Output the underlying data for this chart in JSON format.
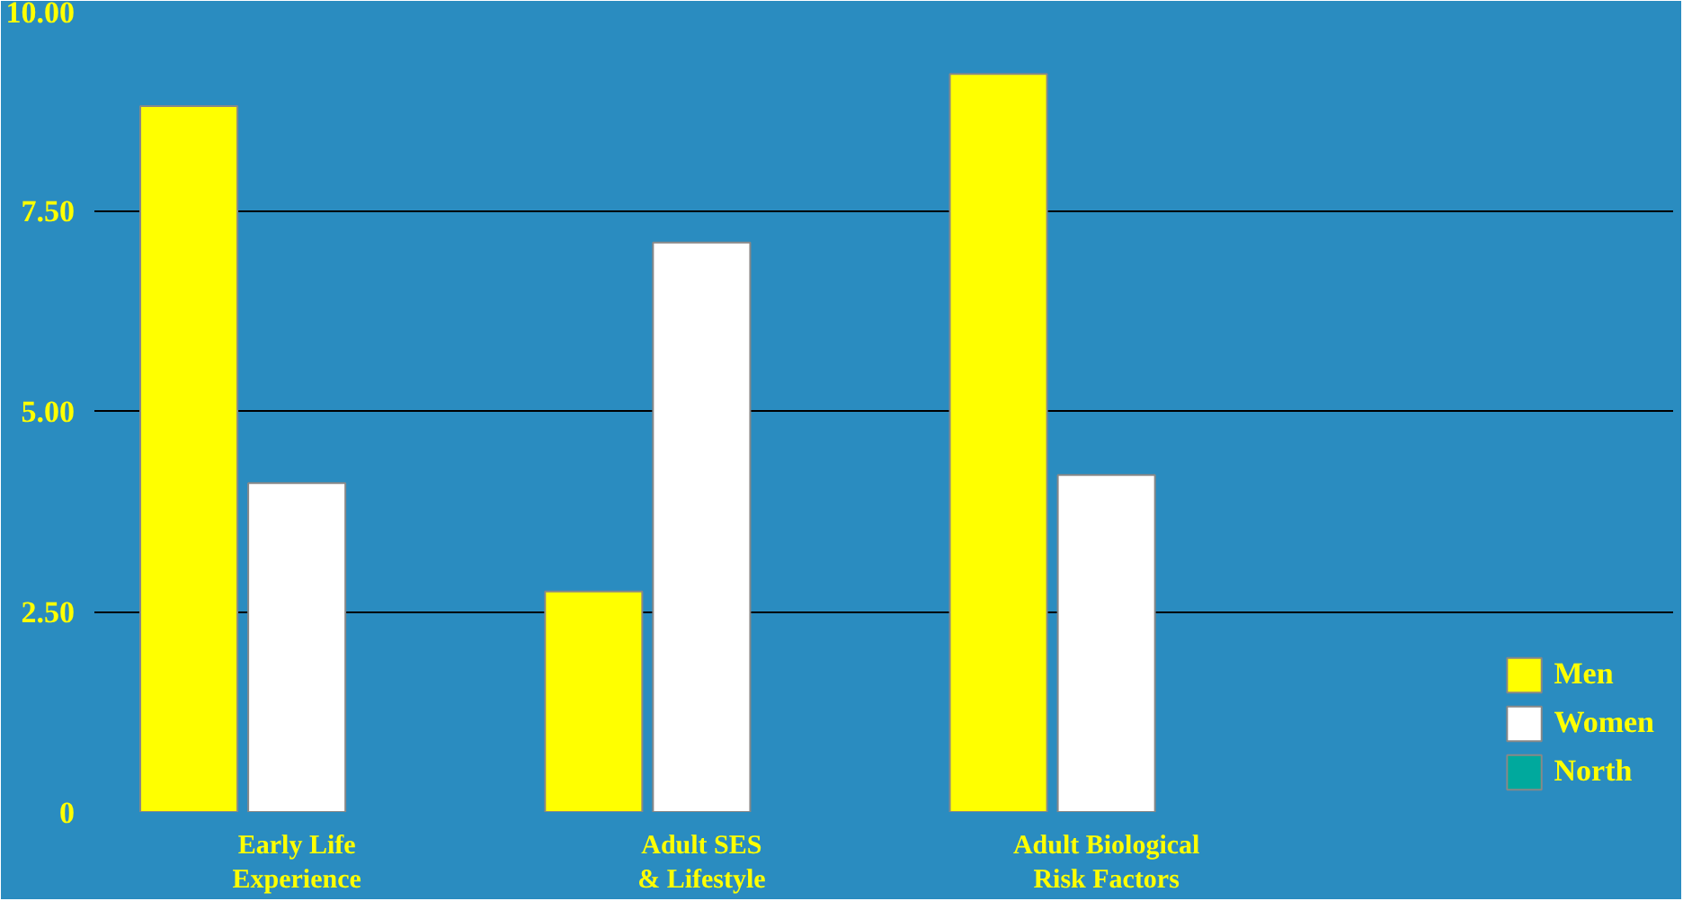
{
  "chart_data": {
    "type": "bar",
    "categories": [
      "Early Life Experience",
      "Adult SES & Lifestyle",
      "Adult Biological Risk Factors"
    ],
    "series": [
      {
        "name": "Men",
        "color": "#ffff00",
        "values": [
          8.8,
          2.75,
          9.2
        ]
      },
      {
        "name": "Women",
        "color": "#ffffff",
        "values": [
          4.1,
          7.1,
          4.2
        ]
      },
      {
        "name": "North",
        "color": "#00a99d",
        "values": [
          null,
          null,
          null
        ]
      }
    ],
    "ylim": [
      0,
      10
    ],
    "yticks": [
      {
        "value": 0,
        "label": "0"
      },
      {
        "value": 2.5,
        "label": "2.50"
      },
      {
        "value": 5,
        "label": "5.00"
      },
      {
        "value": 7.5,
        "label": "7.50"
      },
      {
        "value": 10,
        "label": "10.00"
      }
    ],
    "grid": "y",
    "legend": "bottom right"
  }
}
